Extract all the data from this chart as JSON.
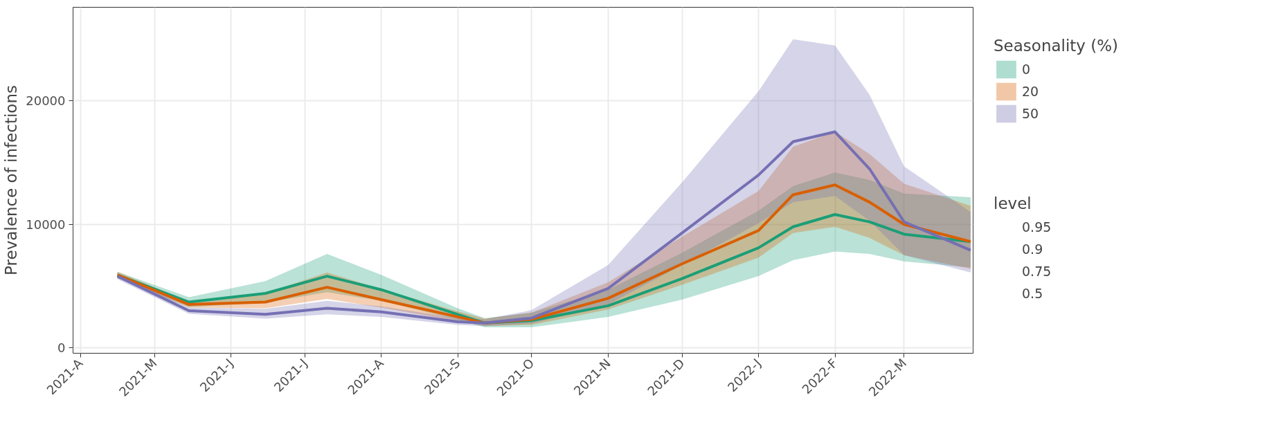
{
  "chart_data": {
    "type": "line",
    "ylabel": "Prevalence of infections",
    "legend_title": "Seasonality (%)",
    "annotations": [
      "level",
      "0.95",
      "0.9",
      "0.75",
      "0.5"
    ],
    "x": [
      "2021-04-16",
      "2021-05-15",
      "2021-06-15",
      "2021-07-10",
      "2021-08-01",
      "2021-09-01",
      "2021-09-12",
      "2021-10-01",
      "2021-11-01",
      "2021-12-01",
      "2022-01-01",
      "2022-01-15",
      "2022-02-01",
      "2022-02-15",
      "2022-03-01",
      "2022-03-28"
    ],
    "xlim": [
      "2021-03-29",
      "2022-03-29"
    ],
    "xticks": [
      {
        "value": "2021-04-01",
        "label": "2021-A"
      },
      {
        "value": "2021-05-01",
        "label": "2021-M"
      },
      {
        "value": "2021-06-01",
        "label": "2021-J"
      },
      {
        "value": "2021-07-01",
        "label": "2021-J"
      },
      {
        "value": "2021-08-01",
        "label": "2021-A"
      },
      {
        "value": "2021-09-01",
        "label": "2021-S"
      },
      {
        "value": "2021-10-01",
        "label": "2021-O"
      },
      {
        "value": "2021-11-01",
        "label": "2021-N"
      },
      {
        "value": "2021-12-01",
        "label": "2021-D"
      },
      {
        "value": "2022-01-01",
        "label": "2022-J"
      },
      {
        "value": "2022-02-01",
        "label": "2022-F"
      },
      {
        "value": "2022-03-01",
        "label": "2022-M"
      }
    ],
    "ylim": [
      -450,
      27600
    ],
    "yticks": [
      0,
      10000,
      20000
    ],
    "grid": true,
    "legend": "right",
    "series": [
      {
        "name": "0",
        "color": "#1b9e77",
        "values": [
          5900,
          3700,
          4400,
          5800,
          4700,
          2700,
          2000,
          2200,
          3400,
          5600,
          8100,
          9800,
          10800,
          10200,
          9200,
          8600
        ],
        "lower": [
          5650,
          3300,
          3650,
          4500,
          3800,
          2250,
          1650,
          1650,
          2500,
          3900,
          5800,
          7100,
          7800,
          7600,
          7000,
          6500
        ],
        "upper": [
          6150,
          4100,
          5400,
          7600,
          5900,
          3200,
          2400,
          2850,
          4700,
          7700,
          11100,
          13100,
          14200,
          13600,
          12500,
          12200
        ]
      },
      {
        "name": "20",
        "color": "#d95f02",
        "values": [
          5900,
          3500,
          3700,
          4900,
          3900,
          2500,
          2000,
          2300,
          4000,
          6800,
          9500,
          12400,
          13200,
          11800,
          10000,
          8600
        ],
        "lower": [
          5650,
          3250,
          3200,
          3950,
          3250,
          2150,
          1750,
          1850,
          3100,
          5100,
          7300,
          9300,
          9800,
          8900,
          7500,
          6400
        ],
        "upper": [
          6150,
          3750,
          4400,
          6100,
          4750,
          2950,
          2350,
          2850,
          5300,
          9000,
          12700,
          16300,
          17500,
          15700,
          13300,
          11500
        ]
      },
      {
        "name": "50",
        "color": "#7570b3",
        "values": [
          5800,
          3000,
          2700,
          3200,
          2900,
          2100,
          2000,
          2400,
          4800,
          9300,
          14000,
          16700,
          17500,
          14500,
          10200,
          7900
        ],
        "lower": [
          5550,
          2750,
          2350,
          2700,
          2500,
          1850,
          1750,
          1950,
          3500,
          6700,
          10100,
          11800,
          12300,
          10300,
          7500,
          6100
        ],
        "upper": [
          6050,
          3250,
          3150,
          3800,
          3350,
          2400,
          2300,
          3050,
          6700,
          13400,
          20800,
          25000,
          24500,
          20500,
          14700,
          11000
        ]
      }
    ]
  }
}
